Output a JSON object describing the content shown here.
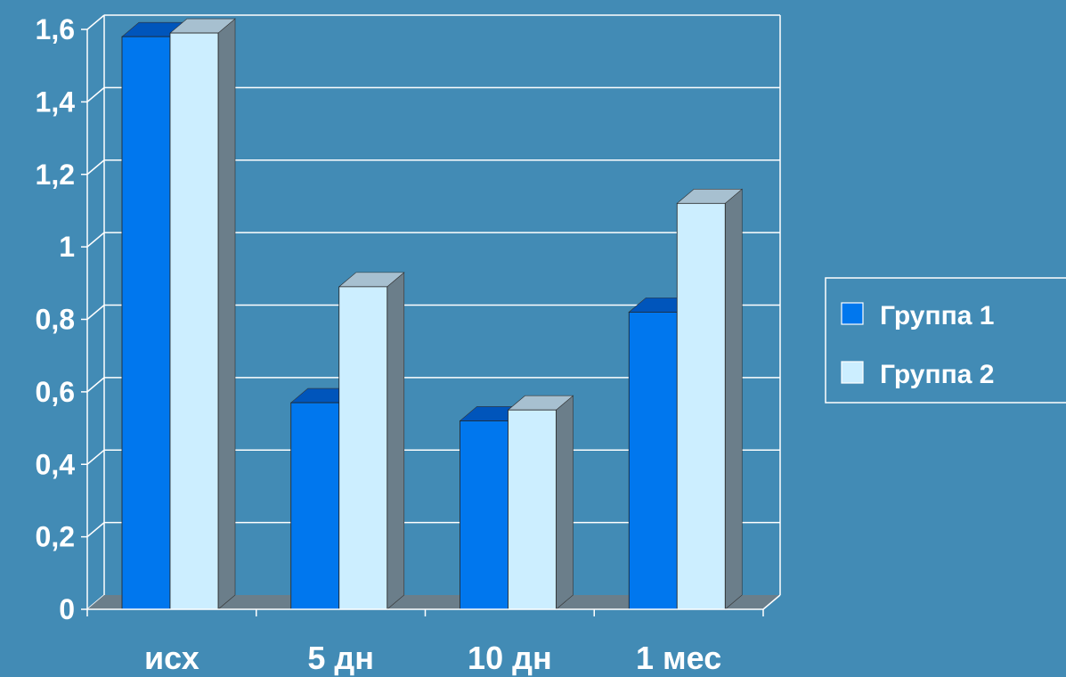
{
  "chart_data": {
    "type": "bar",
    "title": "",
    "xlabel": "",
    "ylabel": "",
    "categories": [
      "исх",
      "5 дн",
      "10 дн",
      "1 мес"
    ],
    "series": [
      {
        "name": "Группа 1",
        "values": [
          1.58,
          0.57,
          0.52,
          0.82
        ],
        "color": "#0077ee"
      },
      {
        "name": "Группа 2",
        "values": [
          1.59,
          0.89,
          0.55,
          1.12
        ],
        "color": "#cceeff"
      }
    ],
    "yticks": [
      "0",
      "0,2",
      "0,4",
      "0,6",
      "0,8",
      "1",
      "1,2",
      "1,4",
      "1,6"
    ],
    "ylim": [
      0,
      1.6
    ],
    "grid": true,
    "legend_position": "right",
    "colors": {
      "background": "#428bb5",
      "floor": "#6b7e8a",
      "axis": "#ffffff",
      "series1_side": "#5a7c92",
      "series1_top": "#0055bb",
      "series2_side": "#6b7e8a",
      "series2_top": "#a7c0d0"
    }
  }
}
